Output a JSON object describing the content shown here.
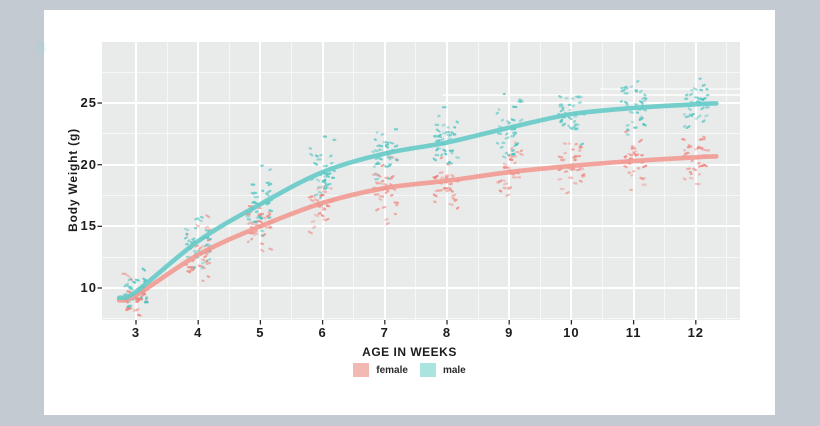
{
  "colors": {
    "frame_background": "#c3cad1",
    "card_background": "#ffffff",
    "panel_background": "#e9eaea",
    "gridline": "#ffffff",
    "axis_text": "#1c1c1c",
    "tick_mark": "#2b2b2b",
    "stray_mark": "#9fd4da"
  },
  "stray_glyph": "8",
  "chart_data": {
    "type": "scatter",
    "subtype": "jittered points with smooth (loess) trend curves, ggplot style",
    "title": "",
    "xlabel": "AGE IN WEEKS",
    "ylabel": "Body Weight (g)",
    "x_ticks": [
      3,
      4,
      5,
      6,
      7,
      8,
      9,
      10,
      11,
      12
    ],
    "y_ticks": [
      10,
      15,
      20,
      25
    ],
    "x_minor_ticks": [
      3.5,
      4.5,
      5.5,
      6.5,
      7.5,
      8.5,
      9.5,
      10.5,
      11.5,
      12.5
    ],
    "y_minor_ticks": [
      7.5,
      12.5,
      17.5,
      22.5,
      27.5
    ],
    "xlim": [
      2.45,
      12.71
    ],
    "ylim": [
      7.4,
      29.95
    ],
    "grid": true,
    "legend_position": "bottom",
    "weeks": [
      3,
      4,
      5,
      6,
      7,
      8,
      9,
      10,
      11,
      12
    ],
    "series": [
      {
        "name": "female",
        "line_color": "#f19a92",
        "point_color": "#ef7f77",
        "legend_color": "#f2b8b2",
        "smooth_values": [
          9.4,
          12.7,
          15.0,
          16.9,
          18.1,
          18.7,
          19.4,
          19.9,
          20.3,
          20.6
        ],
        "spread_sd": [
          0.75,
          1.3,
          1.2,
          1.0,
          1.2,
          1.0,
          1.0,
          1.1,
          1.0,
          0.95
        ],
        "points_per_week": 34,
        "jitter_width": 0.2
      },
      {
        "name": "male",
        "line_color": "#66cbc8",
        "point_color": "#3ec0bc",
        "legend_color": "#a9e4e1",
        "smooth_values": [
          9.7,
          13.8,
          16.8,
          19.4,
          20.9,
          21.8,
          23.0,
          24.1,
          24.6,
          24.9
        ],
        "spread_sd": [
          0.75,
          1.1,
          1.3,
          1.2,
          1.1,
          1.2,
          1.2,
          1.1,
          1.1,
          1.0
        ],
        "points_per_week": 34,
        "jitter_width": 0.2
      }
    ]
  }
}
